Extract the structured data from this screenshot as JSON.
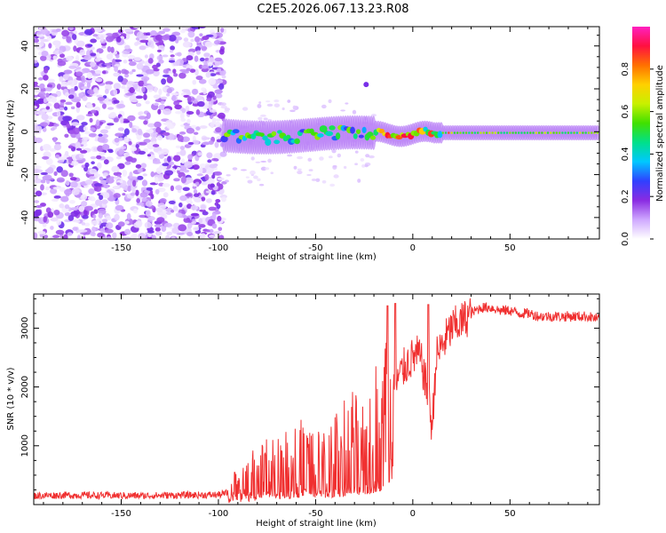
{
  "title": "C2E5.2026.067.13.23.R08",
  "chart_data": [
    {
      "type": "heatmap",
      "xlabel": "Height of straight line (km)",
      "ylabel": "Frequency (Hz)",
      "xlim": [
        -195,
        96
      ],
      "ylim": [
        -50,
        49
      ],
      "xticks": [
        -150,
        -100,
        -50,
        0,
        50
      ],
      "yticks": [
        -40,
        -20,
        0,
        20,
        40
      ],
      "colorbar": {
        "label": "Normalized spectral amplitude",
        "range": [
          0,
          1
        ],
        "ticks": [
          "0.0",
          "0.2",
          "0.4",
          "0.6",
          "0.8"
        ],
        "colors": [
          "#ffffff",
          "#cfa8ff",
          "#8a2be2",
          "#3040ff",
          "#00c8ff",
          "#00e08a",
          "#40e000",
          "#c8f000",
          "#ffd000",
          "#ff7000",
          "#ff1040",
          "#ff20c0"
        ]
      },
      "features": [
        {
          "region": "noise",
          "x": [
            -195,
            -97
          ],
          "y": [
            -50,
            49
          ],
          "amplitude": 0.15
        },
        {
          "region": "band",
          "x": [
            -97,
            96
          ],
          "y_center": 0,
          "amplitude_peak": 1.0
        }
      ]
    },
    {
      "type": "line",
      "xlabel": "Height of straight line (km)",
      "ylabel": "SNR (10 * v/v)",
      "xlim": [
        -195,
        96
      ],
      "ylim": [
        0,
        3580
      ],
      "xticks": [
        -150,
        -100,
        -50,
        0,
        50
      ],
      "yticks": [
        1000,
        2000,
        3000
      ],
      "color": "#f03030",
      "series": [
        {
          "name": "SNR",
          "x": [
            -195,
            -180,
            -160,
            -140,
            -120,
            -100,
            -95,
            -90,
            -85,
            -80,
            -75,
            -70,
            -65,
            -60,
            -55,
            -50,
            -45,
            -40,
            -35,
            -30,
            -25,
            -20,
            -15,
            -12,
            -10,
            -8,
            -5,
            -3,
            0,
            3,
            5,
            8,
            10,
            12,
            15,
            20,
            25,
            30,
            35,
            40,
            45,
            50,
            55,
            60,
            65,
            70,
            75,
            80,
            85,
            90,
            96
          ],
          "y": [
            150,
            160,
            155,
            150,
            160,
            165,
            200,
            350,
            450,
            520,
            600,
            700,
            650,
            750,
            800,
            650,
            700,
            850,
            950,
            1100,
            1000,
            1300,
            1500,
            2200,
            2000,
            2100,
            2300,
            2400,
            2500,
            2550,
            2350,
            1800,
            1300,
            2500,
            2700,
            3000,
            3100,
            3250,
            3350,
            3350,
            3300,
            3300,
            3250,
            3250,
            3200,
            3200,
            3200,
            3200,
            3200,
            3200,
            3150
          ]
        }
      ]
    }
  ]
}
